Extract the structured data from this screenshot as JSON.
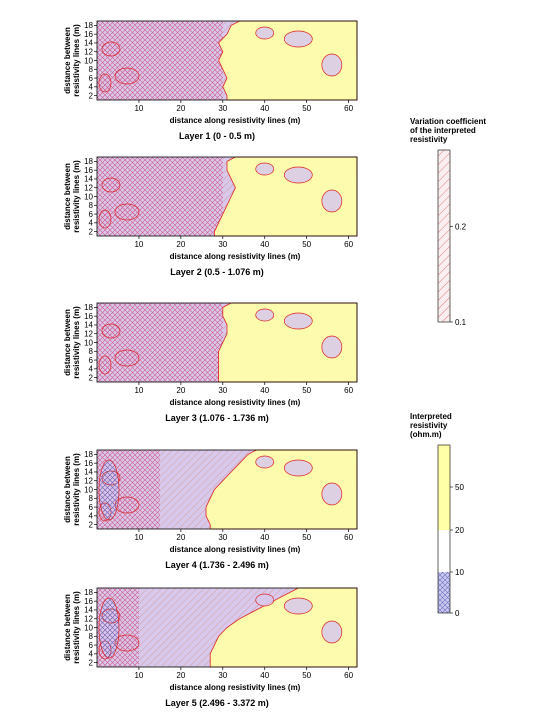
{
  "chart_data": [
    {
      "type": "heatmap",
      "title": "Layer 1 (0 - 0.5 m)",
      "xlabel": "distance along resistivity lines (m)",
      "ylabel": "distance between resistivity lines (m)",
      "xlim": [
        0,
        62
      ],
      "ylim": [
        1,
        19
      ],
      "x_ticks": [
        10,
        20,
        30,
        40,
        50,
        60
      ],
      "y_ticks": [
        2,
        4,
        6,
        8,
        10,
        12,
        14,
        16,
        18
      ],
      "high_resistivity_boundary_x": [
        31,
        30,
        31,
        30,
        29,
        30,
        29,
        31,
        32
      ],
      "hatched_zone_boundary_x": 30
    },
    {
      "type": "heatmap",
      "title": "Layer 2 (0.5 - 1.076 m)",
      "xlabel": "distance along resistivity lines (m)",
      "ylabel": "distance between resistivity lines (m)",
      "xlim": [
        0,
        62
      ],
      "ylim": [
        1,
        19
      ],
      "x_ticks": [
        10,
        20,
        30,
        40,
        50,
        60
      ],
      "y_ticks": [
        2,
        4,
        6,
        8,
        10,
        12,
        14,
        16,
        18
      ],
      "high_resistivity_boundary_x": [
        28,
        29,
        30,
        31,
        32,
        33,
        32,
        31,
        31
      ],
      "hatched_zone_boundary_x": 30
    },
    {
      "type": "heatmap",
      "title": "Layer 3 (1.076 - 1.736 m)",
      "xlabel": "distance along resistivity lines (m)",
      "ylabel": "distance between resistivity lines (m)",
      "xlim": [
        0,
        62
      ],
      "ylim": [
        1,
        19
      ],
      "x_ticks": [
        10,
        20,
        30,
        40,
        50,
        60
      ],
      "y_ticks": [
        2,
        4,
        6,
        8,
        10,
        12,
        14,
        16,
        18
      ],
      "high_resistivity_boundary_x": [
        29,
        29,
        29,
        29,
        30,
        31,
        31,
        30,
        30
      ],
      "hatched_zone_boundary_x": 30
    },
    {
      "type": "heatmap",
      "title": "Layer 4 (1.736 - 2.496 m)",
      "xlabel": "distance along resistivity lines (m)",
      "ylabel": "distance between resistivity lines (m)",
      "xlim": [
        0,
        62
      ],
      "ylim": [
        1,
        19
      ],
      "x_ticks": [
        10,
        20,
        30,
        40,
        50,
        60
      ],
      "y_ticks": [
        2,
        4,
        6,
        8,
        10,
        12,
        14,
        16,
        18
      ],
      "high_resistivity_boundary_x": [
        27,
        26,
        26,
        27,
        28,
        30,
        32,
        34,
        36
      ],
      "hatched_zone_boundary_x": 15
    },
    {
      "type": "heatmap",
      "title": "Layer 5 (2.496 - 3.372 m)",
      "xlabel": "distance along resistivity lines (m)",
      "ylabel": "distance between resistivity lines (m)",
      "xlim": [
        0,
        62
      ],
      "ylim": [
        1,
        19
      ],
      "x_ticks": [
        10,
        20,
        30,
        40,
        50,
        60
      ],
      "y_ticks": [
        2,
        4,
        6,
        8,
        10,
        12,
        14,
        16,
        18
      ],
      "high_resistivity_boundary_x": [
        27,
        27,
        28,
        29,
        31,
        34,
        38,
        42,
        46
      ],
      "hatched_zone_boundary_x": 10
    }
  ],
  "legend_variation": {
    "title_lines": [
      "Variation coefficient",
      "of the interpreted",
      "resistivity"
    ],
    "range": [
      0.1,
      0.28
    ],
    "ticks": [
      {
        "value": 0.2,
        "label": "0.2"
      },
      {
        "value": 0.1,
        "label": "0.1"
      }
    ]
  },
  "legend_resistivity": {
    "title_lines": [
      "Interpreted",
      "resistivity",
      "(ohm.m)"
    ],
    "bands": [
      {
        "from": 0,
        "to": 10,
        "color": "#c8c8f0",
        "pattern": "crosshatch"
      },
      {
        "from": 10,
        "to": 20,
        "color": "#ffffff",
        "pattern": "none"
      },
      {
        "from": 20,
        "to": 80,
        "color": "#ffffa8",
        "pattern": "none"
      }
    ],
    "ticks": [
      {
        "value": 50,
        "label": "50"
      },
      {
        "value": 20,
        "label": "20"
      },
      {
        "value": 10,
        "label": "10"
      },
      {
        "value": 0,
        "label": "0"
      }
    ]
  },
  "colors": {
    "low": "#d8c8ec",
    "mid": "#f4f0f8",
    "high": "#ffffa8",
    "hatch": "#e05060",
    "contour": "#dd2222"
  }
}
